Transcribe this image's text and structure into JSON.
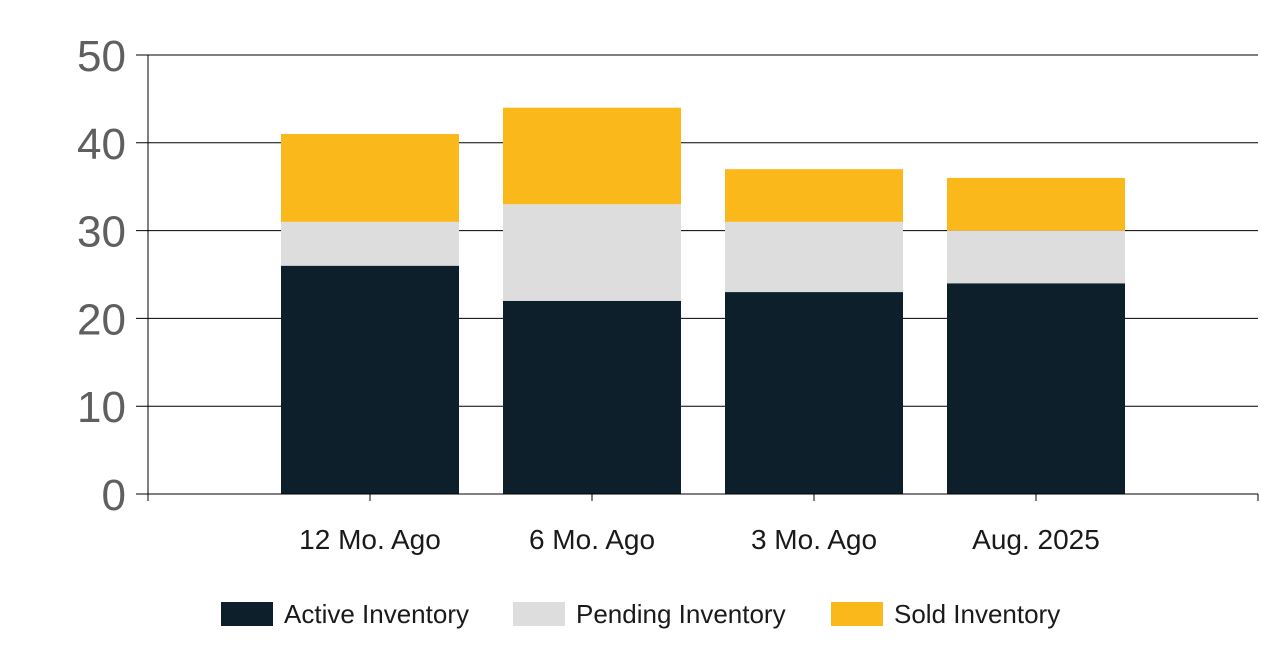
{
  "chart_data": {
    "type": "bar",
    "stacked": true,
    "categories": [
      "12 Mo. Ago",
      "6 Mo. Ago",
      "3 Mo. Ago",
      "Aug. 2025"
    ],
    "series": [
      {
        "name": "Active Inventory",
        "values": [
          26,
          22,
          23,
          24
        ],
        "color": "#0c1f2b"
      },
      {
        "name": "Pending Inventory",
        "values": [
          5,
          11,
          8,
          6
        ],
        "color": "#dddddd"
      },
      {
        "name": "Sold Inventory",
        "values": [
          10,
          11,
          6,
          6
        ],
        "color": "#fbb81a"
      }
    ],
    "ylim": [
      0,
      50
    ],
    "yticks": [
      0,
      10,
      20,
      30,
      40,
      50
    ],
    "grid": true,
    "legend": "bottom"
  }
}
